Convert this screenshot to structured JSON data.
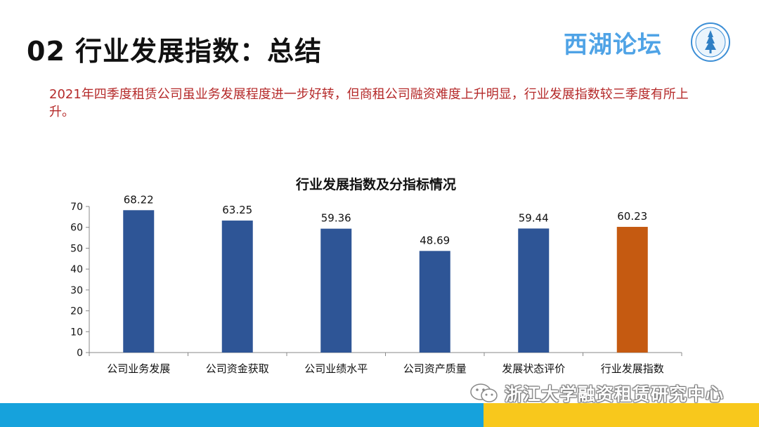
{
  "header": {
    "title": "02 行业发展指数：总结",
    "brand": "西湖论坛"
  },
  "summary": {
    "highlight": "2021",
    "text": "年四季度租赁公司虽业务发展程度进一步好转，但商租公司融资难度上升明显，行业发展指数较三季度有所上升。"
  },
  "colors": {
    "primary_bar": "#2e5596",
    "highlight_bar": "#c55a11",
    "brand": "#4fa3e6",
    "summary_text": "#b52a2a",
    "footer_blue": "#16a2dc",
    "footer_yellow": "#f8c81c"
  },
  "chart_data": {
    "type": "bar",
    "title": "行业发展指数及分指标情况",
    "categories": [
      "公司业务发展",
      "公司资金获取",
      "公司业绩水平",
      "公司资产质量",
      "发展状态评价",
      "行业发展指数"
    ],
    "values": [
      68.22,
      63.25,
      59.36,
      48.69,
      59.44,
      60.23
    ],
    "value_labels": [
      "68.22",
      "63.25",
      "59.36",
      "48.69",
      "59.44",
      "60.23"
    ],
    "highlight_index": 5,
    "ylim": [
      0,
      70
    ],
    "yticks": [
      0,
      10,
      20,
      30,
      40,
      50,
      60,
      70
    ],
    "xlabel": "",
    "ylabel": "",
    "grid": false
  },
  "footer": {
    "brand": "浙江大学融资租赁研究中心",
    "icon": "wechat-icon"
  }
}
